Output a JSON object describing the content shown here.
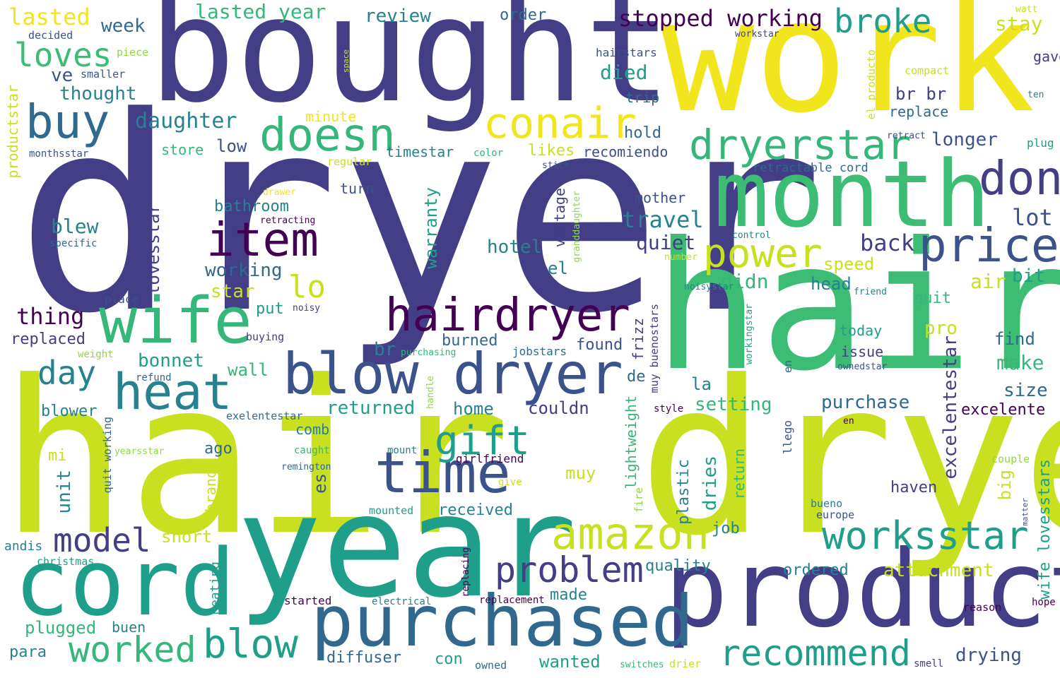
{
  "palette": {
    "dark_purple": "#440154",
    "indigo": "#433e85",
    "blue": "#3b528b",
    "slate": "#31688e",
    "teal": "#26828e",
    "green_teal": "#1f9e89",
    "green": "#35b779",
    "bright_green": "#3dbc74",
    "lime": "#90d743",
    "yellow_green": "#c8e020",
    "yellow": "#f1e51d"
  },
  "words": [
    "dryer",
    "hair dryer",
    "hair",
    "bought",
    "work",
    "year",
    "product",
    "month",
    "cord",
    "purchased",
    "blow dryer",
    "wife",
    "heat",
    "time",
    "hairdryer",
    "item",
    "buy",
    "doesn",
    "conair",
    "dryerstar",
    "price",
    "don",
    "power",
    "amazon",
    "worksstar",
    "recommend",
    "blow",
    "worked",
    "model",
    "problem",
    "gift",
    "day",
    "broke",
    "loves",
    "lasted",
    "lasted year",
    "stopped working",
    "review",
    "order",
    "stay",
    "watt",
    "workstar",
    "week",
    "decided",
    "piece",
    "smaller",
    "ve",
    "thought",
    "hairstars",
    "compact",
    "gave",
    "ten",
    "el producto",
    "space",
    "productstar",
    "died",
    "br br",
    "replace",
    "trip",
    "daughter",
    "minute",
    "hold",
    "monthsstar",
    "store",
    "low",
    "timestar",
    "likes",
    "recomiendo",
    "longer",
    "retract",
    "plug",
    "color",
    "regular",
    "stick",
    "retractable cord",
    "turn",
    "drawer",
    "mother",
    "travel",
    "lot",
    "blew",
    "bathroom",
    "retracting",
    "specific",
    "lovesstar",
    "warranty",
    "voltage",
    "granddaughter",
    "control",
    "hotel",
    "quiet",
    "back",
    "lo",
    "working",
    "el",
    "number",
    "speed",
    "air",
    "bit",
    "star",
    "didn",
    "head",
    "place",
    "noisystar",
    "friend",
    "thing",
    "put",
    "noisy",
    "quit",
    "replaced",
    "buying",
    "pro",
    "find",
    "weight",
    "refund",
    "purchasing",
    "br",
    "burned",
    "frizz",
    "jobstars",
    "muy buenostars",
    "workingstar",
    "today",
    "issue",
    "ownedstar",
    "found",
    "bonnet",
    "make",
    "wall",
    "de",
    "excelentestar",
    "setting",
    "la",
    "blower",
    "returned",
    "handle",
    "home",
    "couldn",
    "purchase",
    "size",
    "style",
    "exelentestar",
    "lightweight",
    "en",
    "llego",
    "excelente",
    "en",
    "comb",
    "ago",
    "mount",
    "caught",
    "girlfriend",
    "quit working",
    "mi",
    "remington",
    "yearsstar",
    "unit",
    "es",
    "brand",
    "muy",
    "plastic",
    "dries",
    "return",
    "haven",
    "big",
    "couple",
    "fire",
    "give",
    "mounted",
    "received",
    "bueno",
    "europe",
    "job",
    "matter",
    "wife lovesstars",
    "short",
    "andis",
    "christmas",
    "heating",
    "quality",
    "attachment",
    "ordered",
    "replacing",
    "made",
    "electrical",
    "replacement",
    "started",
    "reason",
    "hope",
    "plugged",
    "buen",
    "para",
    "diffuser",
    "con",
    "owned",
    "wanted",
    "switches",
    "drier",
    "drying",
    "smell"
  ]
}
